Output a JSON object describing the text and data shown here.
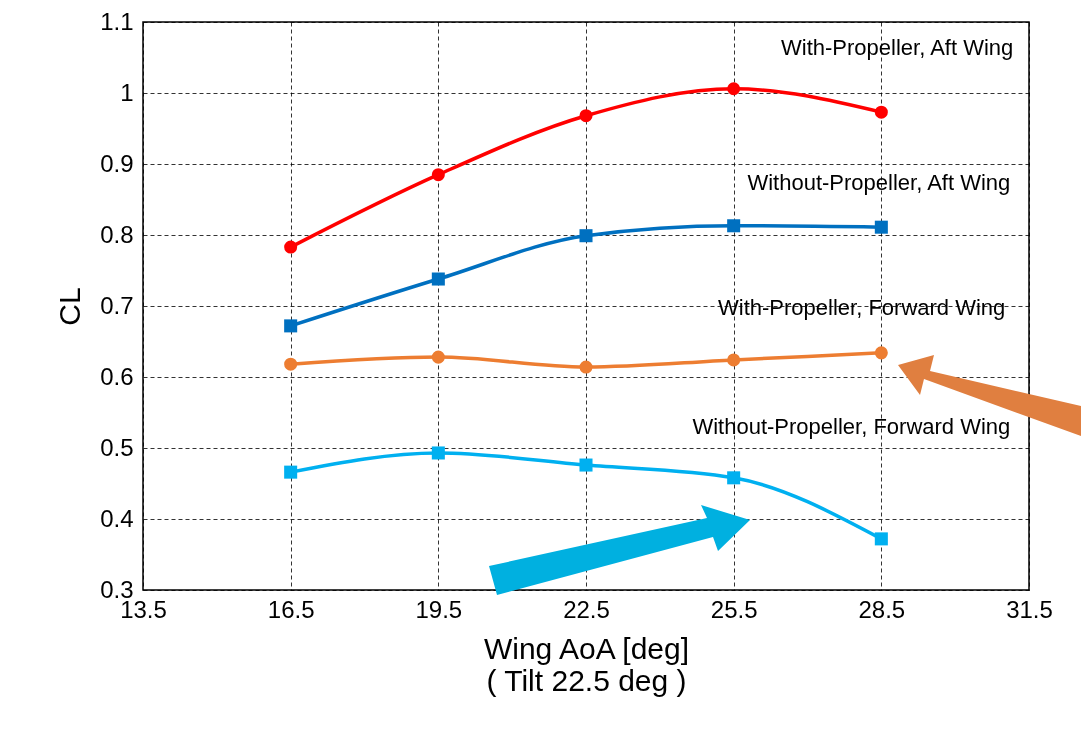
{
  "chart_data": {
    "type": "line",
    "xlabel": "Wing AoA [deg]\n( Tilt 22.5 deg )",
    "ylabel": "CL",
    "x": [
      16.5,
      19.5,
      22.5,
      25.5,
      28.5
    ],
    "series": [
      {
        "name": "With-Propeller, Aft Wing",
        "color": "#ff0000",
        "marker": "circle",
        "values": [
          0.783,
          0.885,
          0.968,
          1.006,
          0.973
        ]
      },
      {
        "name": "Without-Propeller, Aft Wing",
        "color": "#0070c0",
        "marker": "square",
        "values": [
          0.672,
          0.738,
          0.799,
          0.813,
          0.811
        ]
      },
      {
        "name": "With-Propeller, Forward Wing",
        "color": "#ed7d31",
        "marker": "circle",
        "values": [
          0.618,
          0.628,
          0.614,
          0.624,
          0.634
        ]
      },
      {
        "name": "Without-Propeller, Forward Wing",
        "color": "#00b0f0",
        "marker": "square",
        "values": [
          0.466,
          0.493,
          0.476,
          0.458,
          0.372
        ]
      }
    ],
    "xlim": [
      13.5,
      31.5
    ],
    "xticks": [
      13.5,
      16.5,
      19.5,
      22.5,
      25.5,
      28.5,
      31.5
    ],
    "ylim": [
      0.3,
      1.1
    ],
    "yticks": [
      0.3,
      0.4,
      0.5,
      0.6,
      0.7,
      0.8,
      0.9,
      1,
      1.1
    ],
    "grid": true,
    "legend": false,
    "line_style": "solid"
  }
}
